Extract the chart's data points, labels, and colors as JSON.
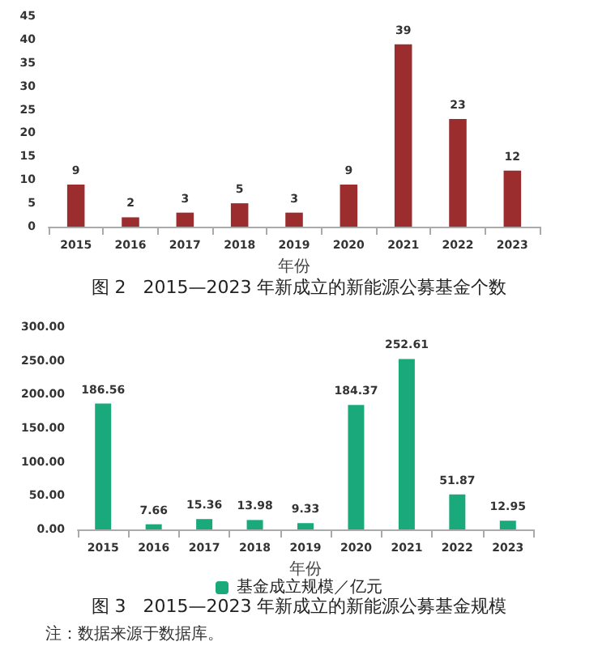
{
  "chart_data": [
    {
      "type": "bar",
      "title": "图 2   2015—2023 年新成立的新能源公募基金个数",
      "xlabel": "年份",
      "categories": [
        "2015",
        "2016",
        "2017",
        "2018",
        "2019",
        "2020",
        "2021",
        "2022",
        "2023"
      ],
      "values": [
        9,
        2,
        3,
        5,
        3,
        9,
        39,
        23,
        12
      ],
      "color": "#9b2d2f",
      "ylim": [
        0,
        45
      ],
      "yticks": [
        0,
        5,
        10,
        15,
        20,
        25,
        30,
        35,
        40,
        45
      ],
      "data_labels": true
    },
    {
      "type": "bar",
      "title": "图 3   2015—2023 年新成立的新能源公募基金规模",
      "xlabel": "年份",
      "categories": [
        "2015",
        "2016",
        "2017",
        "2018",
        "2019",
        "2020",
        "2021",
        "2022",
        "2023"
      ],
      "series": [
        {
          "name": "基金成立规模／亿元",
          "color": "#19a97b",
          "values": [
            186.56,
            7.66,
            15.36,
            13.98,
            9.33,
            184.37,
            252.61,
            51.87,
            12.95
          ]
        }
      ],
      "ylim": [
        0,
        300
      ],
      "yticks": [
        {
          "value": 0,
          "label": "0.00"
        },
        {
          "value": 50,
          "label": "50.00"
        },
        {
          "value": 100,
          "label": "100.00"
        },
        {
          "value": 150,
          "label": "150.00"
        },
        {
          "value": 200,
          "label": "200.00"
        },
        {
          "value": 250,
          "label": "250.00"
        },
        {
          "value": 300,
          "label": "300.00"
        }
      ],
      "data_labels": true,
      "legend": "bottom",
      "annotations": [
        "注：数据来源于数据库。"
      ]
    }
  ]
}
